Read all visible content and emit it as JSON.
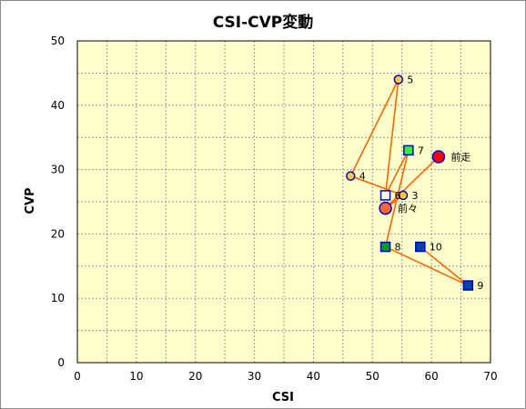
{
  "chart_data": {
    "type": "scatter",
    "title": "CSI-CVP変動",
    "xlabel": "CSI",
    "ylabel": "CVP",
    "xlim": [
      0,
      70
    ],
    "ylim": [
      0,
      50
    ],
    "xticks": [
      0,
      10,
      20,
      30,
      40,
      50,
      60,
      70
    ],
    "yticks": [
      0,
      10,
      20,
      30,
      40,
      50
    ],
    "grid": true,
    "plot_background": "#ffffcc",
    "line_color": "#ff6600",
    "path_order": [
      "前走",
      "前々",
      "3",
      "4",
      "5",
      "6",
      "7",
      "8",
      "9",
      "10"
    ],
    "points": [
      {
        "label": "前走",
        "x": 61.2,
        "y": 32,
        "shape": "circle",
        "size": "large",
        "fill": "#ff0000",
        "stroke": "#0000cc"
      },
      {
        "label": "前々",
        "x": 52.2,
        "y": 24,
        "shape": "circle",
        "size": "large",
        "fill": "#ff6633",
        "stroke": "#0000cc"
      },
      {
        "label": "3",
        "x": 55.2,
        "y": 26,
        "shape": "circle",
        "size": "small",
        "fill": "#ffcc33",
        "stroke": "#0000cc"
      },
      {
        "label": "4",
        "x": 46.3,
        "y": 29,
        "shape": "circle",
        "size": "small",
        "fill": "#ffcc33",
        "stroke": "#0000cc"
      },
      {
        "label": "5",
        "x": 54.4,
        "y": 44,
        "shape": "circle",
        "size": "small",
        "fill": "#ffcc33",
        "stroke": "#0000cc"
      },
      {
        "label": "6",
        "x": 52.2,
        "y": 26,
        "shape": "square",
        "size": "small",
        "fill": "#ffffff",
        "stroke": "#0000cc"
      },
      {
        "label": "7",
        "x": 56.1,
        "y": 33,
        "shape": "square",
        "size": "small",
        "fill": "#33ee33",
        "stroke": "#0000cc"
      },
      {
        "label": "8",
        "x": 52.2,
        "y": 18,
        "shape": "square",
        "size": "small",
        "fill": "#009933",
        "stroke": "#0000cc"
      },
      {
        "label": "9",
        "x": 66.2,
        "y": 12,
        "shape": "square",
        "size": "small",
        "fill": "#0044aa",
        "stroke": "#0000cc"
      },
      {
        "label": "10",
        "x": 58.1,
        "y": 18,
        "shape": "square",
        "size": "small",
        "fill": "#0044aa",
        "stroke": "#0000cc"
      }
    ]
  }
}
